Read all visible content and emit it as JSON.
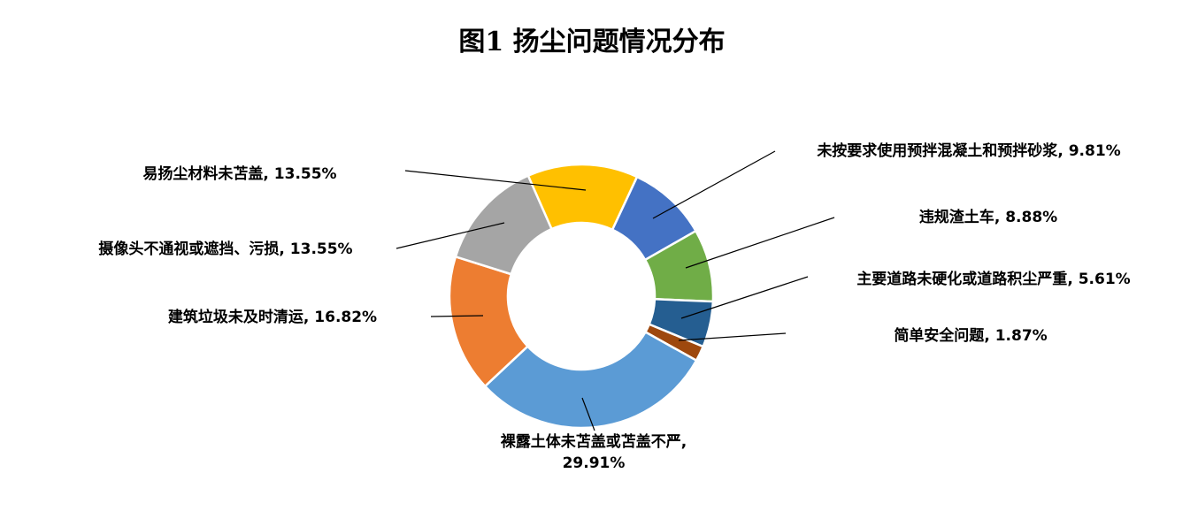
{
  "chart_data": {
    "type": "pie",
    "subtype": "donut",
    "title": "图1 扬尘问题情况分布",
    "legend": "none",
    "labels_style": "category name + percentage with leader lines",
    "label_separator": ", ",
    "start_angle_deg": 25,
    "inner_radius_ratio": 0.56,
    "slices": [
      {
        "label": "未按要求使用预拌混凝土和预拌砂浆",
        "value": 9.81,
        "pct": "9.81%",
        "color": "#4472C4"
      },
      {
        "label": "违规渣土车",
        "value": 8.88,
        "pct": "8.88%",
        "color": "#70AD47"
      },
      {
        "label": "主要道路未硬化或道路积尘严重",
        "value": 5.61,
        "pct": "5.61%",
        "color": "#255E91"
      },
      {
        "label": "简单安全问题",
        "value": 1.87,
        "pct": "1.87%",
        "color": "#9E480E"
      },
      {
        "label": "裸露土体未苫盖或苫盖不严",
        "value": 29.91,
        "pct": "29.91%",
        "color": "#5B9BD5"
      },
      {
        "label": "建筑垃圾未及时清运",
        "value": 16.82,
        "pct": "16.82%",
        "color": "#ED7D31"
      },
      {
        "label": "摄像头不通视或遮挡、污损",
        "value": 13.55,
        "pct": "13.55%",
        "color": "#A5A5A5"
      },
      {
        "label": "易扬尘材料未苫盖",
        "value": 13.55,
        "pct": "13.55%",
        "color": "#FFC000"
      }
    ],
    "colors": {
      "leader_line": "#000000",
      "slice_border": "#FFFFFF",
      "text": "#000000",
      "background": "#FFFFFF"
    }
  }
}
